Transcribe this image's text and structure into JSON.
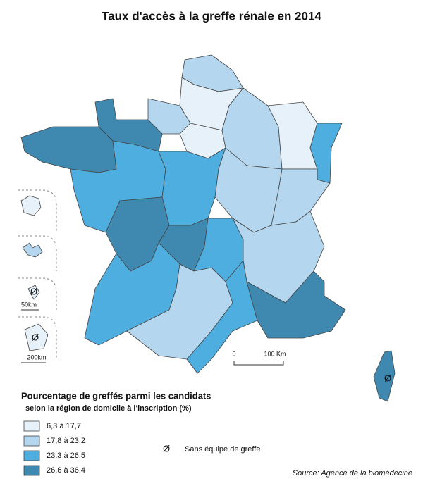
{
  "title": "Taux d'accès à la greffe rénale en 2014",
  "scale": {
    "start": "0",
    "end": "100 Km"
  },
  "insets": {
    "scale_small": "50km",
    "scale_large": "200km"
  },
  "legend": {
    "title": "Pourcentage de greffés parmi les candidats",
    "subtitle": "selon la région de domicile à l'inscription (%)",
    "classes": [
      {
        "label": "6,3 à 17,7",
        "color": "#e6f1fa"
      },
      {
        "label": "17,8 à 23,2",
        "color": "#b4d7ef"
      },
      {
        "label": "23,3 à 26,5",
        "color": "#4faee0"
      },
      {
        "label": "26,6 à 36,4",
        "color": "#3f88b0"
      }
    ],
    "no_team": {
      "symbol": "Ø",
      "label": "Sans équipe de greffe"
    }
  },
  "source": "Source: Agence de la biomédecine"
}
